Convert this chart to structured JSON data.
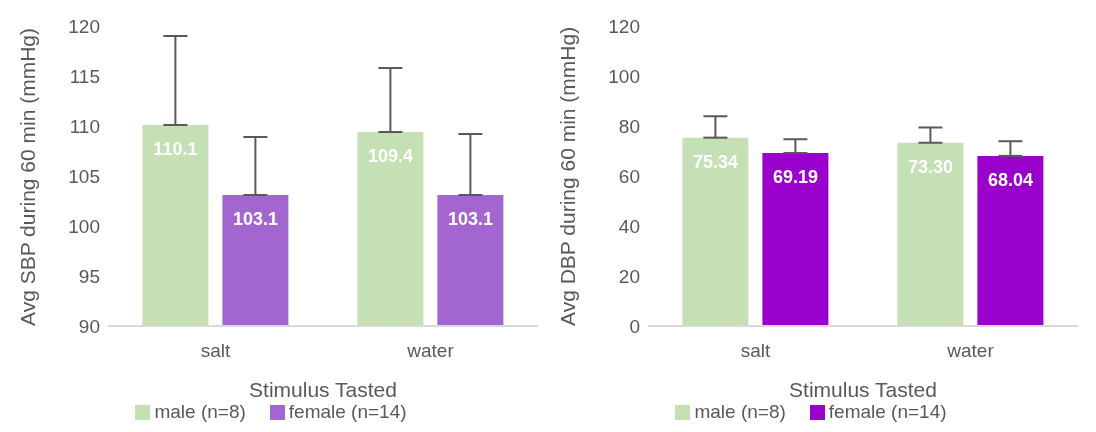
{
  "chart_data": [
    {
      "type": "bar",
      "categories": [
        "salt",
        "water"
      ],
      "xlabel": "Stimulus Tasted",
      "ylabel": "Avg SBP during 60 min (mmHg)",
      "ylim": [
        90,
        120
      ],
      "yticks": [
        90,
        95,
        100,
        105,
        110,
        115,
        120
      ],
      "grid": false,
      "legend": "bottom",
      "data_labels": true,
      "series": [
        {
          "name": "male (n=8)",
          "color": "#c5e0b4",
          "values": [
            110.1,
            109.4
          ],
          "errors": [
            [
              110.1,
              119.0
            ],
            [
              109.4,
              115.8
            ]
          ]
        },
        {
          "name": "female (n=14)",
          "color": "#a366d1",
          "values": [
            103.1,
            103.1
          ],
          "errors": [
            [
              103.1,
              108.9
            ],
            [
              103.1,
              109.2
            ]
          ]
        }
      ]
    },
    {
      "type": "bar",
      "categories": [
        "salt",
        "water"
      ],
      "xlabel": "Stimulus Tasted",
      "ylabel": "Avg DBP during 60 min (mmHg)",
      "ylim": [
        0,
        120
      ],
      "yticks": [
        0,
        20,
        40,
        60,
        80,
        100,
        120
      ],
      "grid": false,
      "legend": "bottom",
      "series": [
        {
          "name": "male (n=8)",
          "color": "#c5e0b4",
          "values": [
            75.34,
            73.3
          ],
          "value_labels": [
            "75.34",
            "73.30"
          ],
          "errors": [
            [
              75.34,
              83.9
            ],
            [
              73.3,
              79.4
            ]
          ]
        },
        {
          "name": "female (n=14)",
          "color": "#9900cc",
          "values": [
            69.19,
            68.04
          ],
          "value_labels": [
            "69.19",
            "68.04"
          ],
          "errors": [
            [
              69.19,
              74.7
            ],
            [
              68.04,
              73.9
            ]
          ]
        }
      ]
    }
  ]
}
